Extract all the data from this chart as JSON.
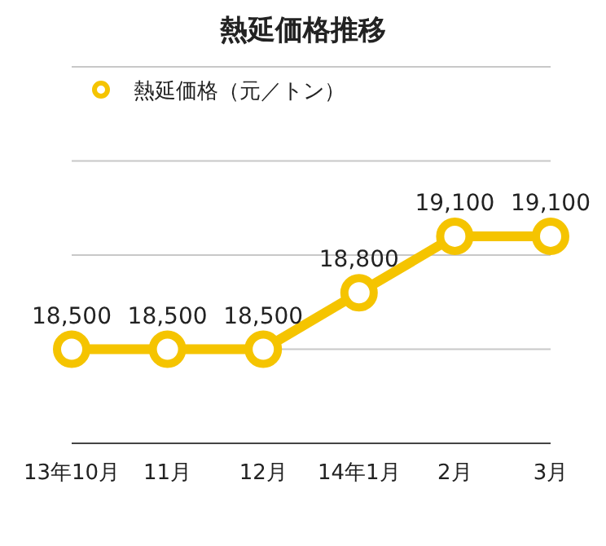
{
  "chart_data": {
    "type": "line",
    "title": "熱延価格推移",
    "categories": [
      "13年10月",
      "11月",
      "12月",
      "14年1月",
      "2月",
      "3月"
    ],
    "series": [
      {
        "name": "熱延価格（元／トン）",
        "color": "#f5c400",
        "values": [
          18500,
          18500,
          18500,
          18800,
          19100,
          19100
        ],
        "value_labels": [
          "18,500",
          "18,500",
          "18,500",
          "18,800",
          "19,100",
          "19,100"
        ]
      }
    ],
    "ylim": [
      18000,
      20000
    ],
    "yticks": [
      {
        "value": 18000,
        "label": null
      },
      {
        "value": 18500,
        "label": null
      },
      {
        "value": 19000,
        "label": null
      },
      {
        "value": 19500,
        "label": null
      },
      {
        "value": 20000,
        "label": null
      }
    ],
    "grid": "y",
    "legend": "top left",
    "marker": "circle",
    "tick_labels": "x"
  }
}
